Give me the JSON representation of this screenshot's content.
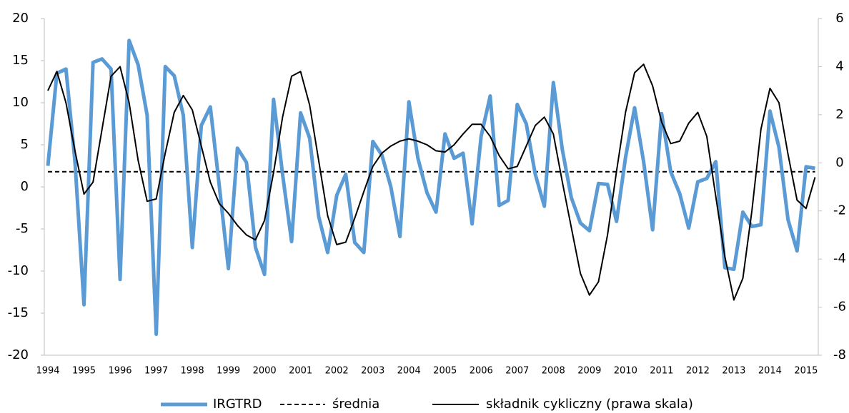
{
  "chart_data": {
    "type": "line",
    "categories": [
      "1994",
      null,
      null,
      null,
      "1995",
      null,
      null,
      null,
      "1996",
      null,
      null,
      null,
      "1997",
      null,
      null,
      null,
      "1998",
      null,
      null,
      null,
      "1999",
      null,
      null,
      null,
      "2000",
      null,
      null,
      null,
      "2001",
      null,
      null,
      null,
      "2002",
      null,
      null,
      null,
      "2003",
      null,
      null,
      null,
      "2004",
      null,
      null,
      null,
      "2005",
      null,
      null,
      null,
      "2006",
      null,
      null,
      null,
      "2007",
      null,
      null,
      null,
      "2008",
      null,
      null,
      null,
      "2009",
      null,
      null,
      null,
      "2010",
      null,
      null,
      null,
      "2011",
      null,
      null,
      null,
      "2012",
      null,
      null,
      null,
      "2013",
      null,
      null,
      null,
      "2014",
      null,
      null,
      null,
      "2015",
      null
    ],
    "series": [
      {
        "name": "IRGTRD",
        "color": "#5b9bd5",
        "width": 5,
        "axis": "y",
        "values": [
          2.5,
          13.5,
          14,
          3,
          -14,
          14.8,
          15.2,
          14,
          -11,
          17.4,
          14.5,
          8.5,
          -17.5,
          14.3,
          13.2,
          8.5,
          -7.2,
          7.3,
          9.5,
          0,
          -9.7,
          4.6,
          2.9,
          -7.2,
          -10.4,
          10.4,
          1.5,
          -6.5,
          8.8,
          5.8,
          -3.5,
          -7.8,
          -1,
          1.5,
          -6.6,
          -7.8,
          5.4,
          3.8,
          0,
          -5.9,
          10.1,
          3.4,
          -0.7,
          -3,
          6.3,
          3.4,
          4,
          -4.4,
          6,
          10.8,
          -2.2,
          -1.6,
          9.8,
          7.5,
          1.5,
          -2.3,
          12.4,
          4.4,
          -1.3,
          -4.3,
          -5.2,
          0.4,
          0.3,
          -4.1,
          3.5,
          9.4,
          3,
          -5.1,
          8.7,
          1.8,
          -0.8,
          -4.9,
          0.6,
          1,
          3,
          -9.6,
          -9.8,
          -3,
          -4.7,
          -4.5,
          9,
          4.7,
          -3.9,
          -7.6,
          2.4,
          2.2
        ]
      },
      {
        "name": "składnik cykliczny (prawa skala)",
        "color": "#000000",
        "width": 2,
        "axis": "y2",
        "values": [
          3.0,
          3.8,
          2.5,
          0.5,
          -1.3,
          -0.8,
          1.4,
          3.6,
          4.0,
          2.5,
          0.1,
          -1.6,
          -1.5,
          0.4,
          2.1,
          2.8,
          2.2,
          0.7,
          -0.8,
          -1.7,
          -2.1,
          -2.6,
          -3.0,
          -3.2,
          -2.4,
          -0.4,
          1.9,
          3.6,
          3.8,
          2.4,
          0.1,
          -2.2,
          -3.4,
          -3.3,
          -2.3,
          -1.2,
          -0.15,
          0.4,
          0.7,
          0.9,
          1.0,
          0.9,
          0.75,
          0.5,
          0.45,
          0.75,
          1.2,
          1.6,
          1.6,
          1.1,
          0.3,
          -0.25,
          -0.15,
          0.7,
          1.55,
          1.9,
          1.2,
          -0.8,
          -2.7,
          -4.6,
          -5.5,
          -4.95,
          -3.0,
          -0.35,
          2.1,
          3.75,
          4.1,
          3.2,
          1.7,
          0.8,
          0.9,
          1.65,
          2.1,
          1.1,
          -1.4,
          -3.9,
          -5.7,
          -4.8,
          -2.0,
          1.4,
          3.1,
          2.5,
          0.35,
          -1.55,
          -1.9,
          -0.6
        ]
      }
    ],
    "hline": {
      "name": "średnia",
      "value": 1.8,
      "color": "#000000",
      "dashed": true
    },
    "ylim": [
      -20,
      20
    ],
    "yticks": [
      -20,
      -15,
      -10,
      -5,
      0,
      5,
      10,
      15,
      20
    ],
    "y2lim": [
      -8,
      6
    ],
    "y2ticks": [
      -8,
      -6,
      -4,
      -2,
      0,
      2,
      4,
      6
    ],
    "grid": false,
    "legend": "bottom"
  }
}
